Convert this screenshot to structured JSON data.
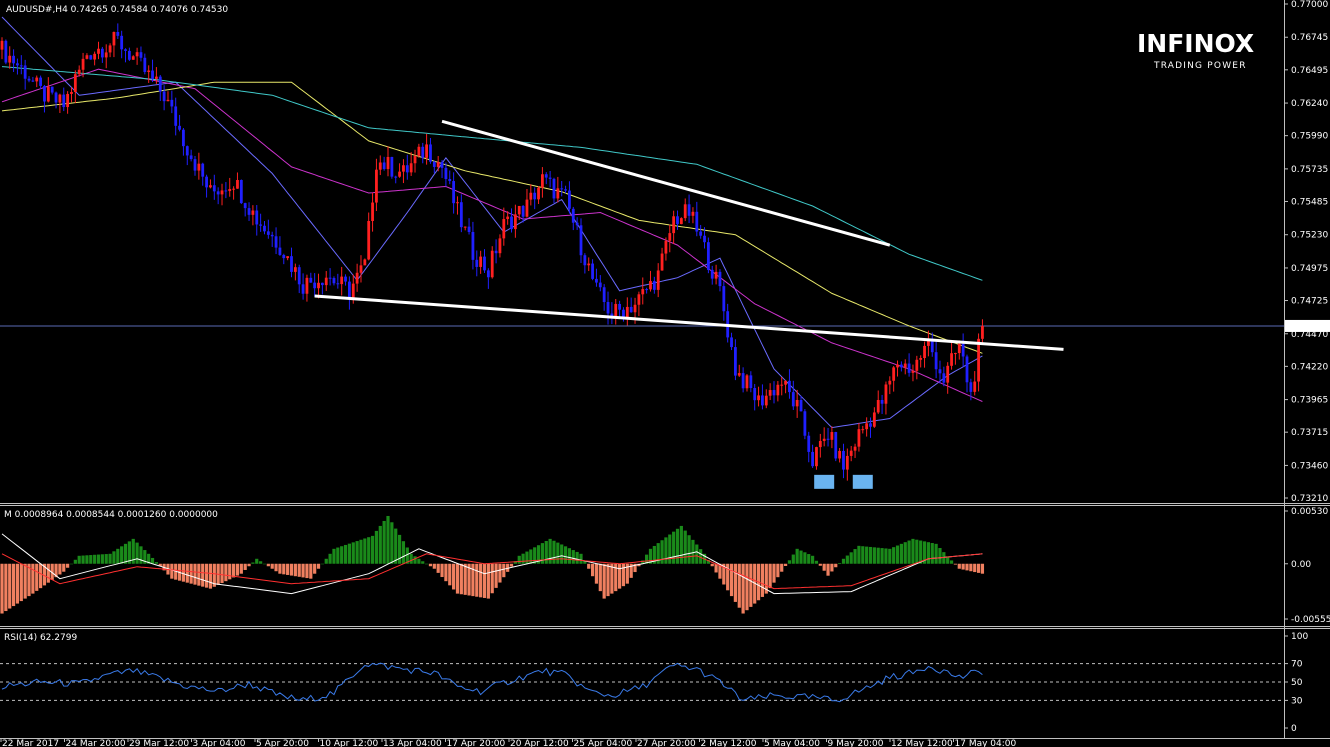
{
  "header": {
    "symbol_info": "AUDUSD#,H4  0.74265 0.74584 0.74076 0.74530"
  },
  "brand": {
    "name": "INFINOX",
    "tagline": "TRADING POWER"
  },
  "colors": {
    "background": "#000000",
    "bull_candle": "#ff2020",
    "bear_candle": "#2020ff",
    "ma_fast": "#6a6aff",
    "ma_mid": "#cc33cc",
    "ma_slow": "#e8e86a",
    "ma_long": "#40c8c8",
    "trendline": "#ffffff",
    "macd_pos": "#1a8a1a",
    "macd_neg": "#f08060",
    "rsi_line": "#3a7ae8",
    "bottom_marker": "#6ab4f0"
  },
  "chart_data": [
    {
      "type": "candlestick",
      "panel": "main",
      "title": "AUDUSD#,H4",
      "ylim": [
        0.7321,
        0.77
      ],
      "y_ticks": [
        "0.77000",
        "0.76745",
        "0.76495",
        "0.76240",
        "0.75990",
        "0.75735",
        "0.75485",
        "0.75230",
        "0.74975",
        "0.74725",
        "0.74470",
        "0.74220",
        "0.73965",
        "0.73715",
        "0.73460",
        "0.73210"
      ],
      "last_price": "0.74530",
      "x_ticks": [
        "22 Mar 2017",
        "24 Mar 20:00",
        "29 Mar 12:00",
        "3 Apr 04:00",
        "5 Apr 20:00",
        "10 Apr 12:00",
        "13 Apr 04:00",
        "17 Apr 20:00",
        "20 Apr 12:00",
        "25 Apr 04:00",
        "27 Apr 20:00",
        "2 May 12:00",
        "5 May 04:00",
        "9 May 20:00",
        "12 May 12:00",
        "17 May 04:00"
      ],
      "close_path": [
        {
          "i": 0,
          "v": 0.7665
        },
        {
          "i": 6,
          "v": 0.7648
        },
        {
          "i": 10,
          "v": 0.7632
        },
        {
          "i": 16,
          "v": 0.7622
        },
        {
          "i": 22,
          "v": 0.7662
        },
        {
          "i": 30,
          "v": 0.7672
        },
        {
          "i": 36,
          "v": 0.7652
        },
        {
          "i": 42,
          "v": 0.763
        },
        {
          "i": 48,
          "v": 0.759
        },
        {
          "i": 54,
          "v": 0.7555
        },
        {
          "i": 60,
          "v": 0.7565
        },
        {
          "i": 66,
          "v": 0.7535
        },
        {
          "i": 72,
          "v": 0.7515
        },
        {
          "i": 78,
          "v": 0.7485
        },
        {
          "i": 84,
          "v": 0.7492
        },
        {
          "i": 90,
          "v": 0.748
        },
        {
          "i": 94,
          "v": 0.75
        },
        {
          "i": 97,
          "v": 0.758
        },
        {
          "i": 104,
          "v": 0.757
        },
        {
          "i": 110,
          "v": 0.759
        },
        {
          "i": 114,
          "v": 0.7575
        },
        {
          "i": 118,
          "v": 0.754
        },
        {
          "i": 122,
          "v": 0.751
        },
        {
          "i": 126,
          "v": 0.7495
        },
        {
          "i": 130,
          "v": 0.753
        },
        {
          "i": 136,
          "v": 0.7545
        },
        {
          "i": 140,
          "v": 0.7565
        },
        {
          "i": 146,
          "v": 0.755
        },
        {
          "i": 150,
          "v": 0.7515
        },
        {
          "i": 154,
          "v": 0.748
        },
        {
          "i": 158,
          "v": 0.7462
        },
        {
          "i": 164,
          "v": 0.747
        },
        {
          "i": 170,
          "v": 0.7492
        },
        {
          "i": 174,
          "v": 0.7535
        },
        {
          "i": 178,
          "v": 0.754
        },
        {
          "i": 182,
          "v": 0.7512
        },
        {
          "i": 186,
          "v": 0.748
        },
        {
          "i": 190,
          "v": 0.742
        },
        {
          "i": 196,
          "v": 0.7395
        },
        {
          "i": 202,
          "v": 0.741
        },
        {
          "i": 206,
          "v": 0.739
        },
        {
          "i": 210,
          "v": 0.735
        },
        {
          "i": 214,
          "v": 0.737
        },
        {
          "i": 218,
          "v": 0.7345
        },
        {
          "i": 222,
          "v": 0.737
        },
        {
          "i": 228,
          "v": 0.7395
        },
        {
          "i": 232,
          "v": 0.7425
        },
        {
          "i": 236,
          "v": 0.742
        },
        {
          "i": 240,
          "v": 0.744
        },
        {
          "i": 244,
          "v": 0.7412
        },
        {
          "i": 248,
          "v": 0.7438
        },
        {
          "i": 251,
          "v": 0.74
        },
        {
          "i": 254,
          "v": 0.7453
        }
      ],
      "moving_averages": [
        {
          "name": "ma_fast",
          "color_key": "ma_fast",
          "points": [
            {
              "i": 0,
              "v": 0.769
            },
            {
              "i": 20,
              "v": 0.763
            },
            {
              "i": 45,
              "v": 0.764
            },
            {
              "i": 70,
              "v": 0.757
            },
            {
              "i": 92,
              "v": 0.7488
            },
            {
              "i": 105,
              "v": 0.754
            },
            {
              "i": 115,
              "v": 0.7582
            },
            {
              "i": 130,
              "v": 0.7525
            },
            {
              "i": 145,
              "v": 0.755
            },
            {
              "i": 160,
              "v": 0.748
            },
            {
              "i": 175,
              "v": 0.749
            },
            {
              "i": 186,
              "v": 0.7505
            },
            {
              "i": 200,
              "v": 0.742
            },
            {
              "i": 215,
              "v": 0.7375
            },
            {
              "i": 230,
              "v": 0.7382
            },
            {
              "i": 245,
              "v": 0.7415
            },
            {
              "i": 254,
              "v": 0.743
            }
          ]
        },
        {
          "name": "ma_mid",
          "color_key": "ma_mid",
          "points": [
            {
              "i": 0,
              "v": 0.7625
            },
            {
              "i": 25,
              "v": 0.765
            },
            {
              "i": 50,
              "v": 0.7635
            },
            {
              "i": 75,
              "v": 0.7575
            },
            {
              "i": 95,
              "v": 0.7555
            },
            {
              "i": 115,
              "v": 0.756
            },
            {
              "i": 135,
              "v": 0.7535
            },
            {
              "i": 155,
              "v": 0.754
            },
            {
              "i": 175,
              "v": 0.7515
            },
            {
              "i": 195,
              "v": 0.747
            },
            {
              "i": 215,
              "v": 0.744
            },
            {
              "i": 235,
              "v": 0.742
            },
            {
              "i": 254,
              "v": 0.7395
            }
          ]
        },
        {
          "name": "ma_slow",
          "color_key": "ma_slow",
          "points": [
            {
              "i": 0,
              "v": 0.7618
            },
            {
              "i": 30,
              "v": 0.7628
            },
            {
              "i": 55,
              "v": 0.764
            },
            {
              "i": 75,
              "v": 0.764
            },
            {
              "i": 95,
              "v": 0.7595
            },
            {
              "i": 120,
              "v": 0.7572
            },
            {
              "i": 145,
              "v": 0.7556
            },
            {
              "i": 165,
              "v": 0.7534
            },
            {
              "i": 190,
              "v": 0.7523
            },
            {
              "i": 215,
              "v": 0.7478
            },
            {
              "i": 235,
              "v": 0.7453
            },
            {
              "i": 254,
              "v": 0.7432
            }
          ]
        },
        {
          "name": "ma_long",
          "color_key": "ma_long",
          "points": [
            {
              "i": 0,
              "v": 0.7652
            },
            {
              "i": 40,
              "v": 0.7642
            },
            {
              "i": 70,
              "v": 0.763
            },
            {
              "i": 95,
              "v": 0.7605
            },
            {
              "i": 120,
              "v": 0.7598
            },
            {
              "i": 150,
              "v": 0.759
            },
            {
              "i": 180,
              "v": 0.7577
            },
            {
              "i": 210,
              "v": 0.7545
            },
            {
              "i": 235,
              "v": 0.7508
            },
            {
              "i": 254,
              "v": 0.7488
            }
          ]
        }
      ],
      "trendlines": [
        {
          "from": {
            "i": 114,
            "v": 0.761
          },
          "to": {
            "i": 230,
            "v": 0.7515
          }
        },
        {
          "from": {
            "i": 81,
            "v": 0.7476
          },
          "to": {
            "i": 275,
            "v": 0.7435
          }
        }
      ],
      "bottom_markers": [
        {
          "i": 213,
          "v": 0.7338
        },
        {
          "i": 223,
          "v": 0.7338
        }
      ],
      "candle_count": 255
    },
    {
      "type": "bar",
      "panel": "macd",
      "title": "M 0.0008964 0.0008544 0.0001260 0.0000000",
      "ylim": [
        -0.00555,
        0.0053
      ],
      "y_ticks": [
        "0.00530",
        "0.00",
        "-0.00555"
      ],
      "histogram": [
        {
          "i": 0,
          "v": -0.005
        },
        {
          "i": 8,
          "v": -0.003
        },
        {
          "i": 16,
          "v": -0.0008
        },
        {
          "i": 20,
          "v": 0.0008
        },
        {
          "i": 28,
          "v": 0.001
        },
        {
          "i": 34,
          "v": 0.0025
        },
        {
          "i": 38,
          "v": 0.001
        },
        {
          "i": 44,
          "v": -0.0015
        },
        {
          "i": 54,
          "v": -0.0025
        },
        {
          "i": 62,
          "v": -0.001
        },
        {
          "i": 66,
          "v": 0.0005
        },
        {
          "i": 72,
          "v": -0.001
        },
        {
          "i": 80,
          "v": -0.0015
        },
        {
          "i": 86,
          "v": 0.0015
        },
        {
          "i": 96,
          "v": 0.0028
        },
        {
          "i": 100,
          "v": 0.0048
        },
        {
          "i": 106,
          "v": 0.001
        },
        {
          "i": 112,
          "v": -0.0005
        },
        {
          "i": 118,
          "v": -0.003
        },
        {
          "i": 126,
          "v": -0.0035
        },
        {
          "i": 134,
          "v": 0.0008
        },
        {
          "i": 142,
          "v": 0.0025
        },
        {
          "i": 150,
          "v": 0.001
        },
        {
          "i": 156,
          "v": -0.0035
        },
        {
          "i": 162,
          "v": -0.002
        },
        {
          "i": 168,
          "v": 0.0015
        },
        {
          "i": 176,
          "v": 0.0038
        },
        {
          "i": 182,
          "v": 0.001
        },
        {
          "i": 186,
          "v": -0.0015
        },
        {
          "i": 192,
          "v": -0.005
        },
        {
          "i": 198,
          "v": -0.003
        },
        {
          "i": 202,
          "v": -0.0008
        },
        {
          "i": 206,
          "v": 0.0015
        },
        {
          "i": 210,
          "v": 0.0008
        },
        {
          "i": 214,
          "v": -0.0012
        },
        {
          "i": 218,
          "v": 0.0005
        },
        {
          "i": 222,
          "v": 0.0018
        },
        {
          "i": 230,
          "v": 0.0015
        },
        {
          "i": 236,
          "v": 0.0025
        },
        {
          "i": 242,
          "v": 0.002
        },
        {
          "i": 248,
          "v": -0.0005
        },
        {
          "i": 254,
          "v": -0.001
        }
      ],
      "lines": [
        {
          "name": "main",
          "color": "#ffffff",
          "points": [
            {
              "i": 0,
              "v": 0.003
            },
            {
              "i": 15,
              "v": -0.0015
            },
            {
              "i": 35,
              "v": 0.0005
            },
            {
              "i": 55,
              "v": -0.002
            },
            {
              "i": 75,
              "v": -0.003
            },
            {
              "i": 95,
              "v": -0.001
            },
            {
              "i": 108,
              "v": 0.0015
            },
            {
              "i": 125,
              "v": -0.001
            },
            {
              "i": 145,
              "v": 0.0008
            },
            {
              "i": 160,
              "v": -0.0005
            },
            {
              "i": 180,
              "v": 0.0012
            },
            {
              "i": 200,
              "v": -0.003
            },
            {
              "i": 220,
              "v": -0.0028
            },
            {
              "i": 240,
              "v": 0.0005
            },
            {
              "i": 254,
              "v": 0.001
            }
          ]
        },
        {
          "name": "signal",
          "color": "#ff3030",
          "points": [
            {
              "i": 0,
              "v": 0.001
            },
            {
              "i": 15,
              "v": -0.002
            },
            {
              "i": 35,
              "v": -0.0003
            },
            {
              "i": 55,
              "v": -0.001
            },
            {
              "i": 75,
              "v": -0.002
            },
            {
              "i": 95,
              "v": -0.0015
            },
            {
              "i": 110,
              "v": 0.001
            },
            {
              "i": 125,
              "v": 0.0
            },
            {
              "i": 145,
              "v": 0.0005
            },
            {
              "i": 160,
              "v": 0.0
            },
            {
              "i": 180,
              "v": 0.0008
            },
            {
              "i": 200,
              "v": -0.0025
            },
            {
              "i": 220,
              "v": -0.0022
            },
            {
              "i": 240,
              "v": 0.0005
            },
            {
              "i": 254,
              "v": 0.001
            }
          ]
        }
      ]
    },
    {
      "type": "line",
      "panel": "rsi",
      "title": "RSI(14) 62.2799",
      "ylim": [
        0,
        100
      ],
      "y_ticks": [
        "100",
        "70",
        "50",
        "30",
        "0"
      ],
      "levels": [
        70,
        50,
        30
      ],
      "values": [
        {
          "i": 0,
          "v": 45
        },
        {
          "i": 10,
          "v": 50
        },
        {
          "i": 20,
          "v": 48
        },
        {
          "i": 28,
          "v": 58
        },
        {
          "i": 34,
          "v": 62
        },
        {
          "i": 40,
          "v": 55
        },
        {
          "i": 48,
          "v": 45
        },
        {
          "i": 56,
          "v": 40
        },
        {
          "i": 64,
          "v": 48
        },
        {
          "i": 72,
          "v": 35
        },
        {
          "i": 78,
          "v": 30
        },
        {
          "i": 86,
          "v": 38
        },
        {
          "i": 94,
          "v": 70
        },
        {
          "i": 98,
          "v": 68
        },
        {
          "i": 104,
          "v": 64
        },
        {
          "i": 112,
          "v": 60
        },
        {
          "i": 118,
          "v": 45
        },
        {
          "i": 124,
          "v": 40
        },
        {
          "i": 132,
          "v": 52
        },
        {
          "i": 140,
          "v": 62
        },
        {
          "i": 146,
          "v": 58
        },
        {
          "i": 152,
          "v": 40
        },
        {
          "i": 158,
          "v": 35
        },
        {
          "i": 166,
          "v": 45
        },
        {
          "i": 174,
          "v": 68
        },
        {
          "i": 180,
          "v": 64
        },
        {
          "i": 186,
          "v": 50
        },
        {
          "i": 192,
          "v": 30
        },
        {
          "i": 200,
          "v": 35
        },
        {
          "i": 210,
          "v": 33
        },
        {
          "i": 216,
          "v": 30
        },
        {
          "i": 222,
          "v": 40
        },
        {
          "i": 230,
          "v": 55
        },
        {
          "i": 236,
          "v": 60
        },
        {
          "i": 240,
          "v": 68
        },
        {
          "i": 244,
          "v": 62
        },
        {
          "i": 248,
          "v": 55
        },
        {
          "i": 254,
          "v": 62
        }
      ]
    }
  ]
}
